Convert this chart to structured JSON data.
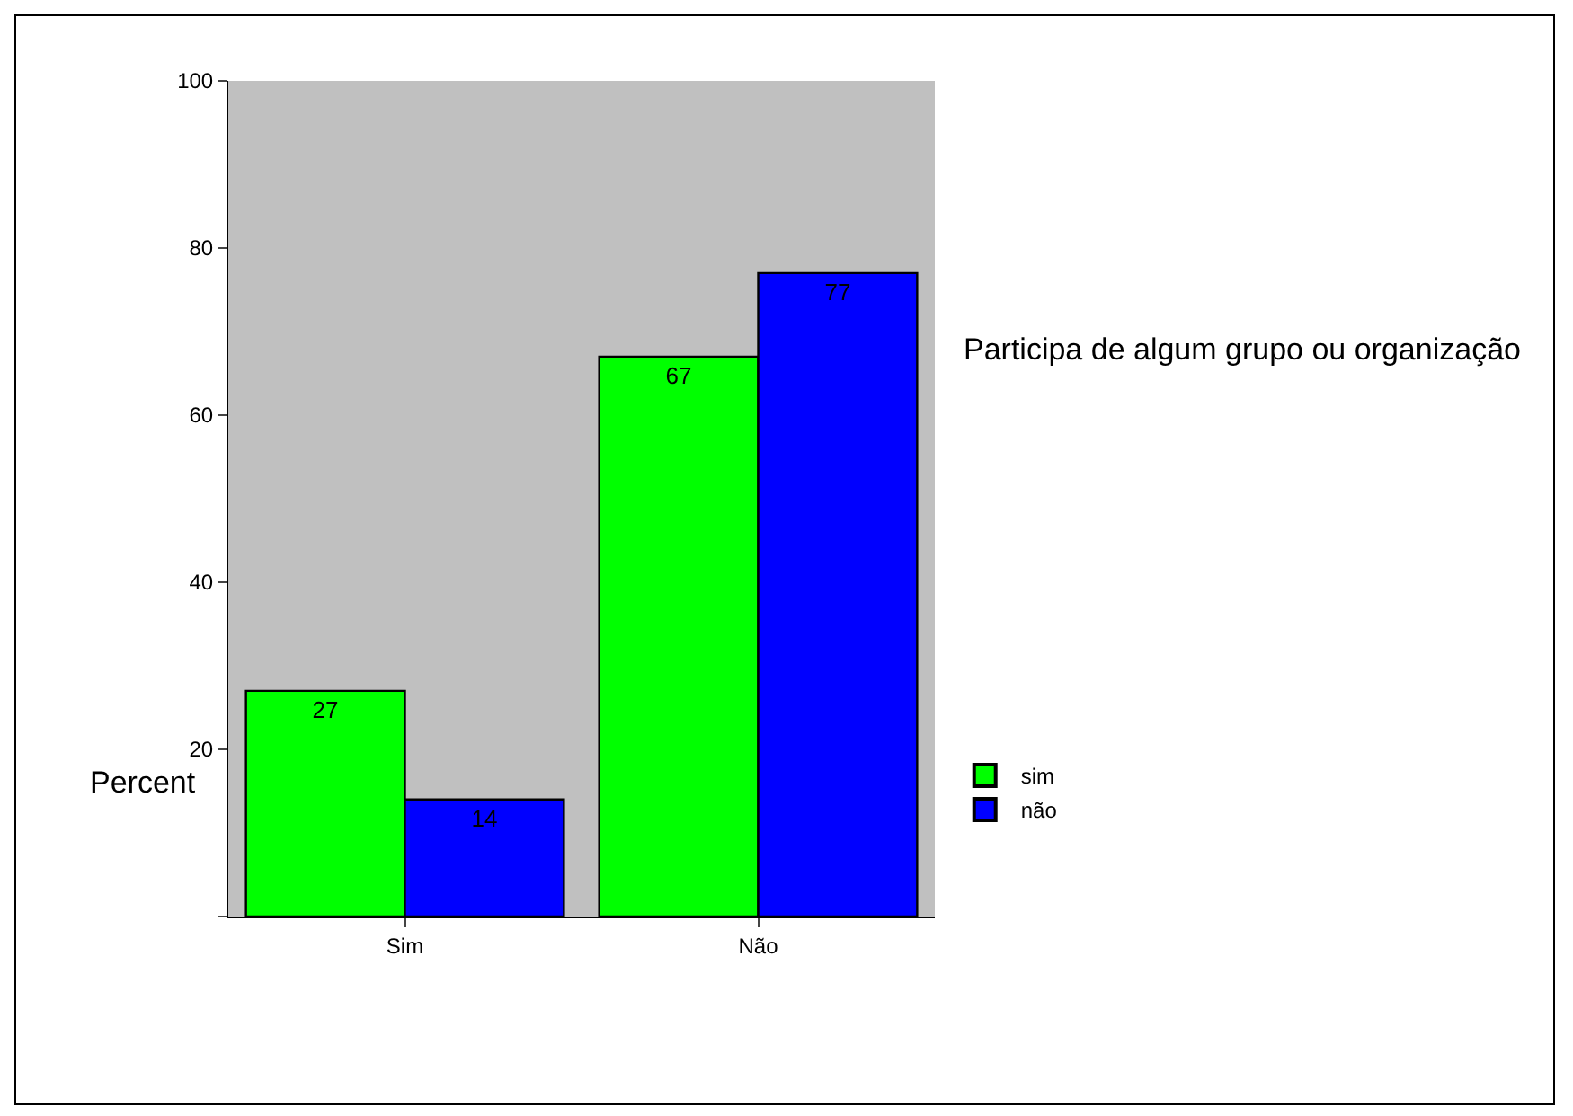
{
  "chart_data": {
    "type": "bar",
    "ylabel": "Percent",
    "legend_title": "Participa de algum grupo ou organização",
    "categories": [
      "Sim",
      "Não"
    ],
    "series": [
      {
        "name": "sim",
        "color": "#00ff00",
        "values": [
          27,
          67
        ]
      },
      {
        "name": "não",
        "color": "#0000ff",
        "values": [
          14,
          77
        ]
      }
    ],
    "ylim": [
      0,
      100
    ],
    "yticks": [
      {
        "value": 0,
        "label": null
      },
      20,
      40,
      60,
      80,
      100
    ],
    "grid": false,
    "legend": "right",
    "data_labels": true
  }
}
